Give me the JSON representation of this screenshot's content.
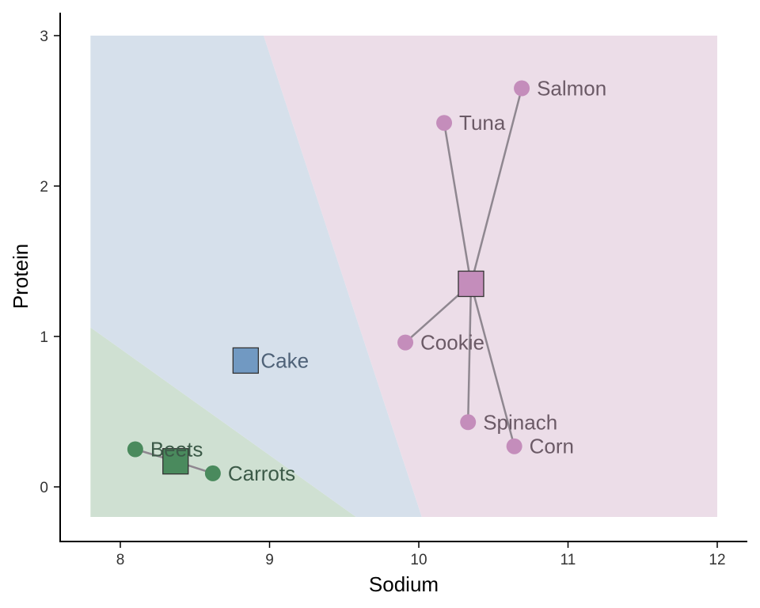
{
  "chart_data": {
    "type": "scatter",
    "title": "",
    "xlabel": "Sodium",
    "ylabel": "Protein",
    "xlim": [
      7.6,
      12.2
    ],
    "ylim": [
      -0.36,
      3.16
    ],
    "xticks": [
      8,
      9,
      10,
      11,
      12
    ],
    "yticks": [
      0,
      1,
      2,
      3
    ],
    "grid": false,
    "legend": "none",
    "regions": [
      {
        "cluster": "green",
        "color": "#cfe0d2",
        "polygon": [
          [
            7.8,
            -0.2
          ],
          [
            9.58,
            -0.2
          ],
          [
            7.8,
            1.06
          ]
        ]
      },
      {
        "cluster": "blue",
        "color": "#d6e0eb",
        "polygon": [
          [
            7.8,
            3.0
          ],
          [
            8.96,
            3.0
          ],
          [
            10.02,
            -0.2
          ],
          [
            9.58,
            -0.2
          ],
          [
            7.8,
            1.06
          ]
        ]
      },
      {
        "cluster": "pink",
        "color": "#ecdde8",
        "polygon": [
          [
            8.96,
            3.0
          ],
          [
            12.0,
            3.0
          ],
          [
            12.0,
            -0.2
          ],
          [
            10.02,
            -0.2
          ]
        ]
      }
    ],
    "centers": [
      {
        "cluster": "green",
        "x": 8.37,
        "y": 0.17,
        "color": "#4a8a5d"
      },
      {
        "cluster": "blue",
        "x": 8.84,
        "y": 0.84,
        "color": "#7199c2"
      },
      {
        "cluster": "pink",
        "x": 10.35,
        "y": 1.35,
        "color": "#c48dbb"
      }
    ],
    "points": [
      {
        "label": "Beets",
        "x": 8.1,
        "y": 0.25,
        "cluster": "green",
        "color": "#4a8a5d",
        "label_color": "#3c5a48"
      },
      {
        "label": "Carrots",
        "x": 8.62,
        "y": 0.09,
        "cluster": "green",
        "color": "#4a8a5d",
        "label_color": "#3c5a48"
      },
      {
        "label": "Salmon",
        "x": 10.69,
        "y": 2.65,
        "cluster": "pink",
        "color": "#c48dbb",
        "label_color": "#6b5a66"
      },
      {
        "label": "Tuna",
        "x": 10.17,
        "y": 2.42,
        "cluster": "pink",
        "color": "#c48dbb",
        "label_color": "#6b5a66"
      },
      {
        "label": "Cookie",
        "x": 9.91,
        "y": 0.96,
        "cluster": "pink",
        "color": "#c48dbb",
        "label_color": "#6b5a66"
      },
      {
        "label": "Spinach",
        "x": 10.33,
        "y": 0.43,
        "cluster": "pink",
        "color": "#c48dbb",
        "label_color": "#6b5a66"
      },
      {
        "label": "Corn",
        "x": 10.64,
        "y": 0.27,
        "cluster": "pink",
        "color": "#c48dbb",
        "label_color": "#6b5a66"
      }
    ],
    "center_labels": [
      {
        "label": "Cake",
        "cluster": "blue",
        "label_color": "#4f6278"
      }
    ],
    "link_color": "#8f8790"
  }
}
